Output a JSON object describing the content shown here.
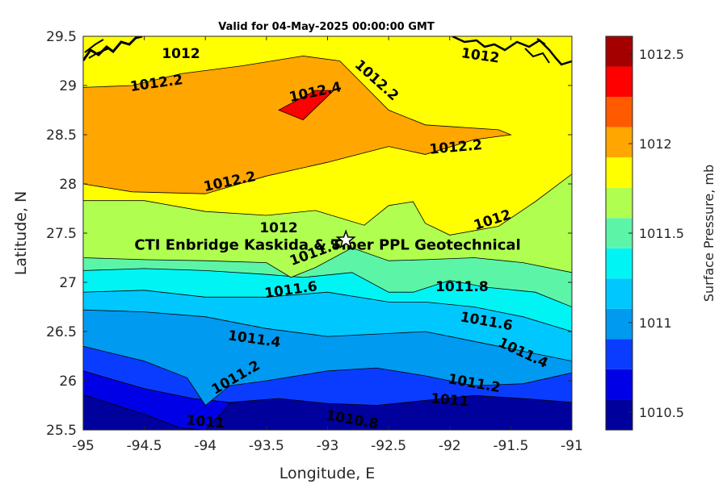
{
  "chart_data": {
    "type": "heatmap",
    "title": "Valid for 04-May-2025 00:00:00 GMT",
    "xlabel": "Longitude, E",
    "ylabel": "Latitude, N",
    "xlim": [
      -95,
      -91
    ],
    "ylim": [
      25.5,
      29.5
    ],
    "xticks": [
      "-95",
      "-94.5",
      "-94",
      "-93.5",
      "-93",
      "-92.5",
      "-92",
      "-91.5",
      "-91"
    ],
    "yticks": [
      "25.5",
      "26",
      "26.5",
      "27",
      "27.5",
      "28",
      "28.5",
      "29",
      "29.5"
    ],
    "colorbar": {
      "label": "Surface Pressure, mb",
      "levels": [
        1010.4,
        1010.5,
        1010.6,
        1010.7,
        1010.8,
        1010.9,
        1011.0,
        1011.1,
        1011.2,
        1011.3,
        1011.4,
        1011.5,
        1011.6,
        1011.7,
        1011.8,
        1011.9,
        1012.0,
        1012.1,
        1012.2,
        1012.3,
        1012.4,
        1012.5,
        1012.6
      ],
      "ticks": [
        "1010.5",
        "1011",
        "1011.5",
        "1012",
        "1012.5"
      ],
      "colors": [
        "#00009d",
        "#0000e6",
        "#0a3cff",
        "#009af0",
        "#00c8ff",
        "#00f4f4",
        "#5cf5a8",
        "#b0ff50",
        "#ffff00",
        "#ffa600",
        "#ff5a00",
        "#ff0000",
        "#a50000"
      ]
    },
    "bands": [
      {
        "level": 1010.6,
        "color": "#0000e6",
        "top": [
          [
            -95,
            25.86
          ],
          [
            -94.5,
            25.66
          ],
          [
            -94.2,
            25.52
          ],
          [
            -94,
            25.5
          ]
        ]
      },
      {
        "level": 1010.8,
        "color": "#0a3cff",
        "top": [
          [
            -95,
            26.1
          ],
          [
            -94.5,
            25.92
          ],
          [
            -94.1,
            25.82
          ],
          [
            -93.8,
            25.78
          ],
          [
            -93.4,
            25.82
          ],
          [
            -93,
            25.77
          ],
          [
            -92.6,
            25.75
          ],
          [
            -92.2,
            25.8
          ],
          [
            -91.8,
            25.85
          ],
          [
            -91.4,
            25.82
          ],
          [
            -91.0,
            25.78
          ]
        ]
      },
      {
        "level": 1011.0,
        "color": "#009af0",
        "top": [
          [
            -95,
            26.35
          ],
          [
            -94.5,
            26.2
          ],
          [
            -94.15,
            26.03
          ],
          [
            -94,
            25.75
          ],
          [
            -93.8,
            25.95
          ],
          [
            -93.5,
            26.0
          ],
          [
            -93,
            26.1
          ],
          [
            -92.6,
            26.13
          ],
          [
            -92.2,
            26.05
          ],
          [
            -91.8,
            25.95
          ],
          [
            -91.4,
            25.97
          ],
          [
            -91.0,
            26.08
          ]
        ]
      },
      {
        "level": 1011.2,
        "color": "#00c8ff",
        "top": [
          [
            -95,
            26.72
          ],
          [
            -94.5,
            26.7
          ],
          [
            -94,
            26.65
          ],
          [
            -93.5,
            26.53
          ],
          [
            -93,
            26.45
          ],
          [
            -92.5,
            26.48
          ],
          [
            -92.2,
            26.5
          ],
          [
            -91.8,
            26.4
          ],
          [
            -91.4,
            26.3
          ],
          [
            -91.0,
            26.2
          ]
        ]
      },
      {
        "level": 1011.4,
        "color": "#00f4f4",
        "top": [
          [
            -95,
            26.9
          ],
          [
            -94.5,
            26.92
          ],
          [
            -94,
            26.85
          ],
          [
            -93.5,
            26.85
          ],
          [
            -93,
            26.9
          ],
          [
            -92.5,
            26.8
          ],
          [
            -92.2,
            26.8
          ],
          [
            -91.8,
            26.75
          ],
          [
            -91.4,
            26.65
          ],
          [
            -91.0,
            26.5
          ]
        ]
      },
      {
        "level": 1011.6,
        "color": "#5cf5a8",
        "top": [
          [
            -95,
            27.12
          ],
          [
            -94.5,
            27.14
          ],
          [
            -94,
            27.12
          ],
          [
            -93.5,
            27.08
          ],
          [
            -93.2,
            27.05
          ],
          [
            -92.8,
            27.1
          ],
          [
            -92.5,
            26.9
          ],
          [
            -92.3,
            26.9
          ],
          [
            -92,
            27.02
          ],
          [
            -91.7,
            26.95
          ],
          [
            -91.3,
            26.9
          ],
          [
            -91.0,
            26.75
          ]
        ]
      },
      {
        "level": 1011.8,
        "color": "#b0ff50",
        "top": [
          [
            -95,
            27.25
          ],
          [
            -94.5,
            27.23
          ],
          [
            -94,
            27.22
          ],
          [
            -93.5,
            27.2
          ],
          [
            -93.3,
            27.05
          ],
          [
            -93.1,
            27.15
          ],
          [
            -92.8,
            27.35
          ],
          [
            -92.5,
            27.22
          ],
          [
            -92.2,
            27.23
          ],
          [
            -91.8,
            27.25
          ],
          [
            -91.4,
            27.2
          ],
          [
            -91.0,
            27.1
          ]
        ]
      },
      {
        "level": 1012.0,
        "color": "#ffff00",
        "top": [
          [
            -95,
            27.83
          ],
          [
            -94.5,
            27.83
          ],
          [
            -94,
            27.72
          ],
          [
            -93.5,
            27.68
          ],
          [
            -93.1,
            27.73
          ],
          [
            -92.7,
            27.58
          ],
          [
            -92.5,
            27.78
          ],
          [
            -92.3,
            27.82
          ],
          [
            -92.2,
            27.6
          ],
          [
            -92,
            27.48
          ],
          [
            -91.6,
            27.57
          ],
          [
            -91.3,
            27.82
          ],
          [
            -91.0,
            28.1
          ]
        ]
      },
      {
        "level": 1012.2,
        "color": "#ffa600",
        "top": [
          [
            -95,
            28.0
          ],
          [
            -94.6,
            27.92
          ],
          [
            -94,
            27.9
          ],
          [
            -93.5,
            28.08
          ],
          [
            -93,
            28.22
          ],
          [
            -92.5,
            28.38
          ],
          [
            -92.2,
            28.3
          ],
          [
            -91.8,
            28.45
          ],
          [
            -91.5,
            28.5
          ],
          [
            -91.6,
            28.55
          ],
          [
            -92.2,
            28.6
          ],
          [
            -92.5,
            28.75
          ],
          [
            -92.7,
            29.0
          ],
          [
            -92.9,
            29.25
          ],
          [
            -93.2,
            29.3
          ],
          [
            -93.7,
            29.2
          ],
          [
            -94.2,
            29.12
          ],
          [
            -94.6,
            29.0
          ],
          [
            -95,
            28.98
          ]
        ]
      },
      {
        "level": 1012.4,
        "color": "#ff0000",
        "top": [
          [
            -93.4,
            28.75
          ],
          [
            -93.1,
            28.95
          ],
          [
            -92.95,
            28.95
          ],
          [
            -93.2,
            28.65
          ],
          [
            -93.4,
            28.75
          ]
        ]
      }
    ],
    "contour_labels": [
      {
        "text": "1012",
        "lon": -94.2,
        "lat": 29.32,
        "angle": 0
      },
      {
        "text": "1012.2",
        "lon": -94.4,
        "lat": 29.02,
        "angle": -8
      },
      {
        "text": "1012.4",
        "lon": -93.1,
        "lat": 28.93,
        "angle": -12
      },
      {
        "text": "1012.2",
        "lon": -92.6,
        "lat": 29.05,
        "angle": 42
      },
      {
        "text": "1012",
        "lon": -91.75,
        "lat": 29.3,
        "angle": 8
      },
      {
        "text": "1012.2",
        "lon": -91.95,
        "lat": 28.37,
        "angle": -5
      },
      {
        "text": "1012.2",
        "lon": -93.8,
        "lat": 28.02,
        "angle": -12
      },
      {
        "text": "1012",
        "lon": -93.4,
        "lat": 27.55,
        "angle": 0
      },
      {
        "text": "1012",
        "lon": -91.65,
        "lat": 27.63,
        "angle": -18
      },
      {
        "text": "1011.6",
        "lon": -93.3,
        "lat": 26.92,
        "angle": -8
      },
      {
        "text": "1011.8",
        "lon": -91.9,
        "lat": 26.95,
        "angle": 0
      },
      {
        "text": "1011.6",
        "lon": -91.7,
        "lat": 26.6,
        "angle": 10
      },
      {
        "text": "1011.4",
        "lon": -93.6,
        "lat": 26.42,
        "angle": 8
      },
      {
        "text": "1011.4",
        "lon": -91.4,
        "lat": 26.28,
        "angle": 25
      },
      {
        "text": "1011.2",
        "lon": -93.75,
        "lat": 26.03,
        "angle": -30
      },
      {
        "text": "1011.2",
        "lon": -91.8,
        "lat": 25.97,
        "angle": 10
      },
      {
        "text": "1011",
        "lon": -92.0,
        "lat": 25.8,
        "angle": 5
      },
      {
        "text": "1011",
        "lon": -94.0,
        "lat": 25.58,
        "angle": 5
      },
      {
        "text": "1010.8",
        "lon": -92.8,
        "lat": 25.6,
        "angle": 10
      },
      {
        "text": "1011.8",
        "lon": -93.1,
        "lat": 27.3,
        "angle": -20
      }
    ],
    "marker": {
      "symbol": "star",
      "lon": -92.85,
      "lat": 27.43
    },
    "annotation": {
      "text": "CTI Enbridge  Kaskida & Tiber PPL Geotechnical",
      "lon": -93.0,
      "lat": 27.33
    }
  }
}
